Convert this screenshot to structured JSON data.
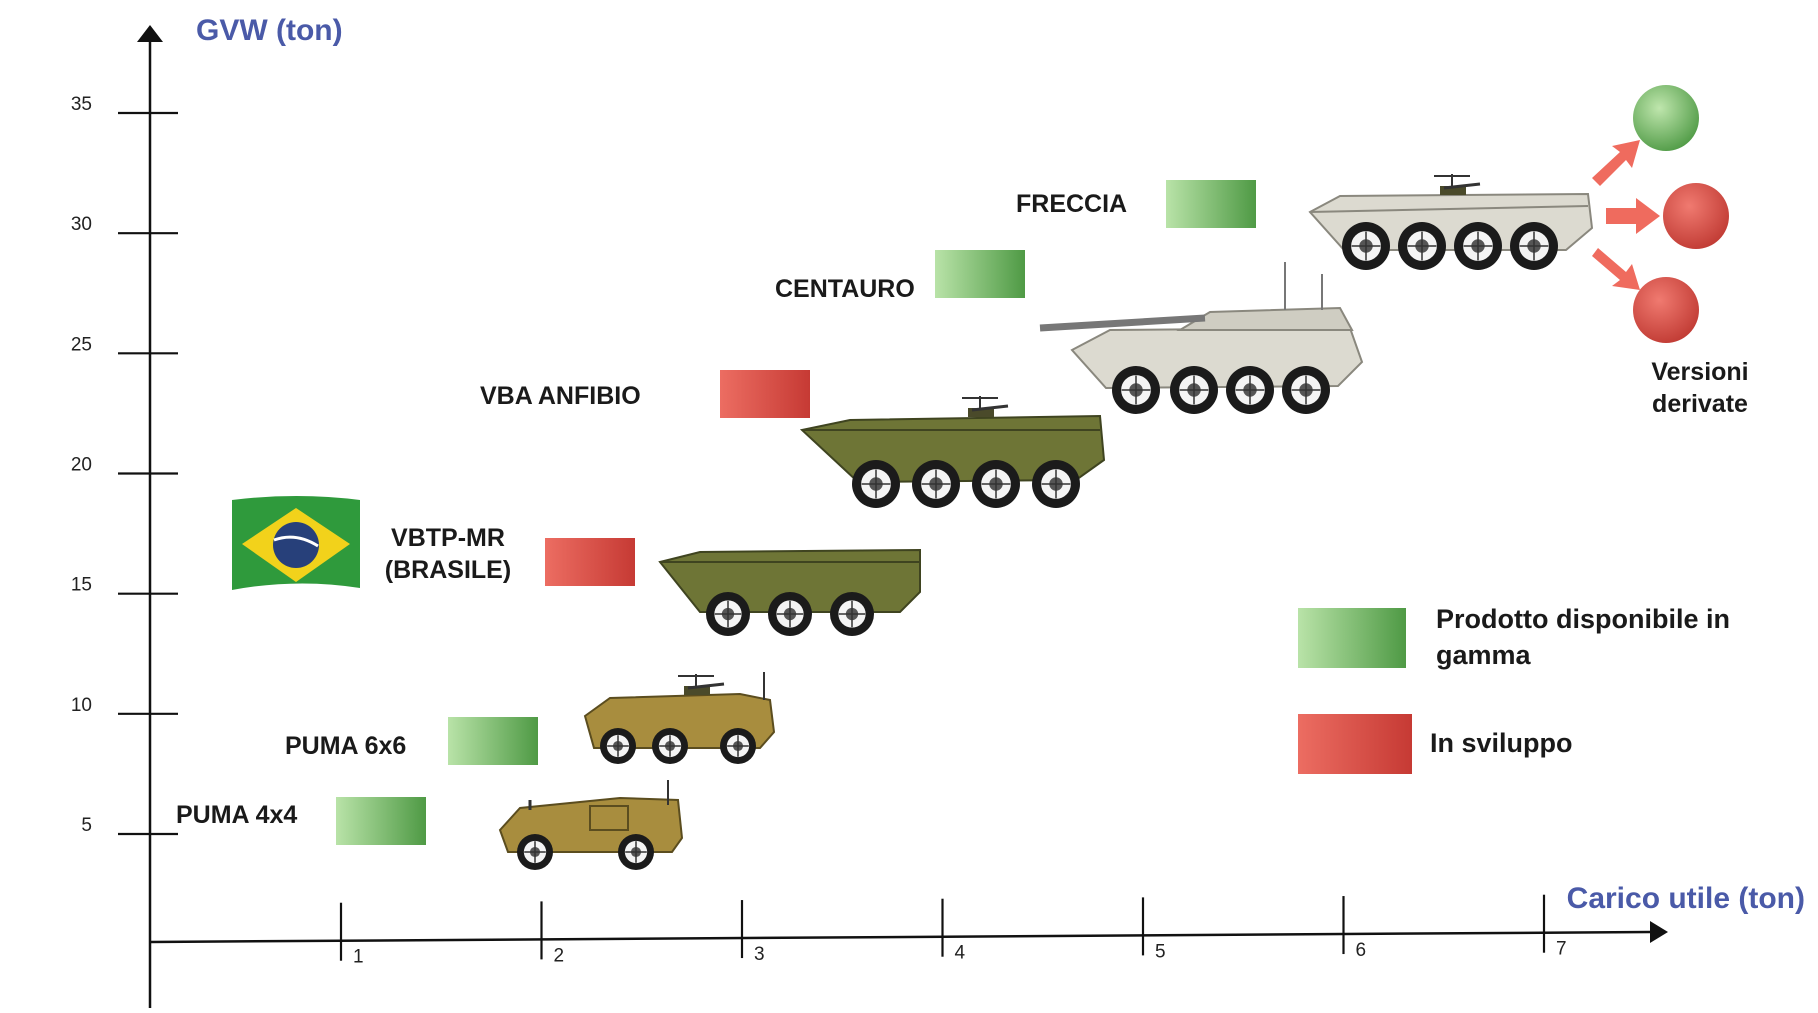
{
  "colors": {
    "available": "#6fbf5f",
    "in_development": "#d9453e",
    "axis_title": "#4a5aa8",
    "olive": "#7a7f3a",
    "sand": "#b59a45",
    "light_grey": "#dedcd3"
  },
  "chart_data": {
    "type": "scatter",
    "y_axis": {
      "title": "GVW (ton)",
      "ticks": [
        5,
        10,
        15,
        20,
        25,
        30,
        35
      ]
    },
    "x_axis": {
      "title": "Carico utile (ton)",
      "ticks": [
        1,
        2,
        3,
        4,
        5,
        6,
        7
      ]
    },
    "vehicles": [
      {
        "name": "PUMA 4x4",
        "lines": [
          "PUMA 4x4"
        ],
        "status": "available",
        "vehicle_style": "puma4x4",
        "flag": false
      },
      {
        "name": "PUMA 6x6",
        "lines": [
          "PUMA 6x6"
        ],
        "status": "available",
        "vehicle_style": "puma6x6",
        "flag": false
      },
      {
        "name": "VBTP-MR (BRASILE)",
        "lines": [
          "VBTP-MR",
          "(BRASILE)"
        ],
        "status": "in_development",
        "vehicle_style": "vbtp",
        "flag": true
      },
      {
        "name": "VBA ANFIBIO",
        "lines": [
          "VBA ANFIBIO"
        ],
        "status": "in_development",
        "vehicle_style": "vba",
        "flag": false
      },
      {
        "name": "CENTAURO",
        "lines": [
          "CENTAURO"
        ],
        "status": "available",
        "vehicle_style": "centauro",
        "flag": false
      },
      {
        "name": "FRECCIA",
        "lines": [
          "FRECCIA"
        ],
        "status": "available",
        "vehicle_style": "freccia",
        "flag": false
      }
    ],
    "derived_versions": {
      "lines": [
        "Versioni",
        "derivate"
      ],
      "circles": [
        "available",
        "in_development",
        "in_development"
      ]
    },
    "legend": [
      {
        "status": "available",
        "lines": [
          "Prodotto disponibile in",
          "gamma"
        ]
      },
      {
        "status": "in_development",
        "lines": [
          "In sviluppo"
        ]
      }
    ]
  }
}
